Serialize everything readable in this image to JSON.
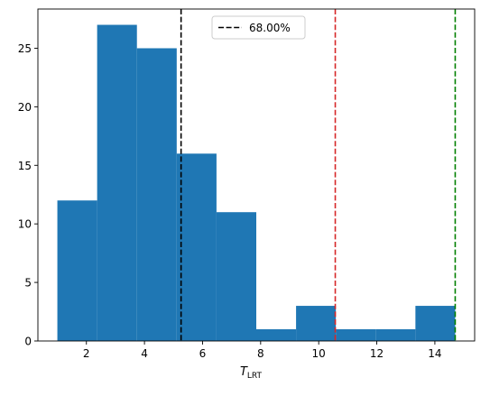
{
  "chart_data": {
    "type": "bar",
    "subtype": "histogram",
    "bins": [
      {
        "x0": 1.0,
        "x1": 2.37,
        "count": 12
      },
      {
        "x0": 2.37,
        "x1": 3.74,
        "count": 27
      },
      {
        "x0": 3.74,
        "x1": 5.11,
        "count": 25
      },
      {
        "x0": 5.11,
        "x1": 6.48,
        "count": 16
      },
      {
        "x0": 6.48,
        "x1": 7.85,
        "count": 11
      },
      {
        "x0": 7.85,
        "x1": 9.22,
        "count": 1
      },
      {
        "x0": 9.22,
        "x1": 10.59,
        "count": 3
      },
      {
        "x0": 10.59,
        "x1": 11.96,
        "count": 1
      },
      {
        "x0": 11.96,
        "x1": 13.33,
        "count": 1
      },
      {
        "x0": 13.33,
        "x1": 14.7,
        "count": 3
      }
    ],
    "xlim": [
      0.33,
      15.37
    ],
    "ylim": [
      0,
      28.35
    ],
    "xticks": [
      2,
      4,
      6,
      8,
      10,
      12,
      14
    ],
    "yticks": [
      0,
      5,
      10,
      15,
      20,
      25
    ],
    "xlabel_main": "T",
    "xlabel_sub": "LRT",
    "ylabel": "",
    "bar_color": "#1f77b4",
    "vlines": [
      {
        "x": 5.26,
        "color": "#000000",
        "style": "dashed",
        "label": "68.00%"
      },
      {
        "x": 10.57,
        "color": "#d62728",
        "style": "dashed"
      },
      {
        "x": 14.7,
        "color": "#008000",
        "style": "dashed"
      }
    ],
    "legend": {
      "position": "top-center",
      "entries": [
        "68.00%"
      ]
    },
    "grid": false
  }
}
